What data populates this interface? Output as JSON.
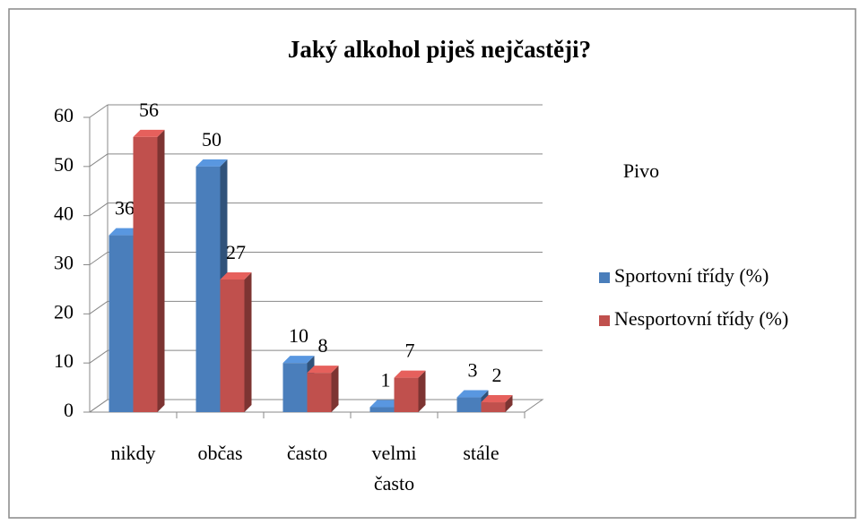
{
  "chart_data": {
    "type": "bar3d",
    "title": "Jaký alkohol piješ nejčastěji?",
    "annotation": "Pivo",
    "categories": [
      "nikdy",
      "občas",
      "často",
      "velmi často",
      "stále"
    ],
    "series": [
      {
        "name": "Sportovní třídy (%)",
        "color": "#4a7ebb",
        "values": [
          36,
          50,
          10,
          1,
          3
        ]
      },
      {
        "name": "Nesportovní třídy (%)",
        "color": "#c0504d",
        "values": [
          56,
          27,
          8,
          7,
          2
        ]
      }
    ],
    "ylim": [
      0,
      60
    ],
    "yticks": [
      0,
      10,
      20,
      30,
      40,
      50,
      60
    ],
    "grid": true,
    "legend": "right"
  }
}
